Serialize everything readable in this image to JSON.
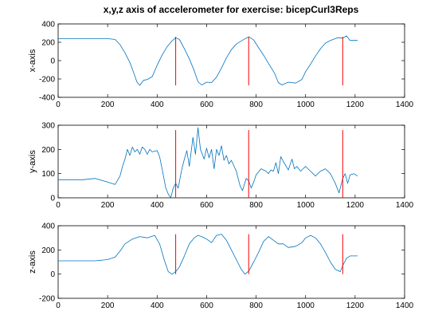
{
  "figure": {
    "title": "x,y,z axis of accelerometer for exercise: bicepCurl3Reps"
  },
  "chart_data": [
    {
      "type": "line",
      "name": "x",
      "ylabel": "x-axis",
      "xlim": [
        0,
        1400
      ],
      "ylim": [
        -400,
        400
      ],
      "xticks": [
        0,
        200,
        400,
        600,
        800,
        1000,
        1200,
        1400
      ],
      "yticks": [
        -400,
        -200,
        0,
        200,
        400
      ],
      "series_color": "#0072bd",
      "marker_color": "#ff0000",
      "markers": {
        "x": [
          475,
          770,
          1150
        ],
        "y_range": [
          -270,
          260
        ]
      },
      "points": [
        [
          0,
          240
        ],
        [
          100,
          240
        ],
        [
          200,
          240
        ],
        [
          230,
          230
        ],
        [
          250,
          175
        ],
        [
          270,
          85
        ],
        [
          290,
          -20
        ],
        [
          305,
          -130
        ],
        [
          318,
          -230
        ],
        [
          330,
          -270
        ],
        [
          345,
          -215
        ],
        [
          360,
          -205
        ],
        [
          380,
          -175
        ],
        [
          400,
          -50
        ],
        [
          420,
          60
        ],
        [
          440,
          150
        ],
        [
          460,
          215
        ],
        [
          475,
          250
        ],
        [
          490,
          230
        ],
        [
          510,
          130
        ],
        [
          530,
          20
        ],
        [
          550,
          -110
        ],
        [
          565,
          -230
        ],
        [
          580,
          -265
        ],
        [
          600,
          -235
        ],
        [
          620,
          -240
        ],
        [
          640,
          -180
        ],
        [
          660,
          -80
        ],
        [
          680,
          30
        ],
        [
          700,
          120
        ],
        [
          720,
          180
        ],
        [
          740,
          215
        ],
        [
          760,
          245
        ],
        [
          770,
          260
        ],
        [
          790,
          225
        ],
        [
          810,
          140
        ],
        [
          830,
          60
        ],
        [
          850,
          -30
        ],
        [
          875,
          -140
        ],
        [
          890,
          -240
        ],
        [
          905,
          -265
        ],
        [
          930,
          -235
        ],
        [
          960,
          -245
        ],
        [
          985,
          -205
        ],
        [
          1000,
          -120
        ],
        [
          1020,
          -40
        ],
        [
          1040,
          50
        ],
        [
          1060,
          130
        ],
        [
          1080,
          190
        ],
        [
          1100,
          220
        ],
        [
          1130,
          250
        ],
        [
          1150,
          245
        ],
        [
          1165,
          270
        ],
        [
          1180,
          220
        ],
        [
          1210,
          220
        ]
      ]
    },
    {
      "type": "line",
      "name": "y",
      "ylabel": "y-axis",
      "xlim": [
        0,
        1400
      ],
      "ylim": [
        0,
        300
      ],
      "xticks": [
        0,
        200,
        400,
        600,
        800,
        1000,
        1200,
        1400
      ],
      "yticks": [
        0,
        100,
        200,
        300
      ],
      "series_color": "#0072bd",
      "marker_color": "#ff0000",
      "markers": {
        "x": [
          475,
          770,
          1150
        ],
        "y_range": [
          0,
          280
        ]
      },
      "points": [
        [
          0,
          75
        ],
        [
          100,
          75
        ],
        [
          150,
          80
        ],
        [
          200,
          65
        ],
        [
          230,
          55
        ],
        [
          250,
          90
        ],
        [
          260,
          130
        ],
        [
          270,
          160
        ],
        [
          280,
          200
        ],
        [
          290,
          175
        ],
        [
          300,
          210
        ],
        [
          310,
          190
        ],
        [
          320,
          200
        ],
        [
          330,
          180
        ],
        [
          340,
          210
        ],
        [
          350,
          200
        ],
        [
          360,
          180
        ],
        [
          370,
          200
        ],
        [
          380,
          190
        ],
        [
          400,
          195
        ],
        [
          410,
          170
        ],
        [
          420,
          120
        ],
        [
          435,
          40
        ],
        [
          445,
          15
        ],
        [
          455,
          0
        ],
        [
          465,
          40
        ],
        [
          475,
          60
        ],
        [
          485,
          40
        ],
        [
          500,
          120
        ],
        [
          510,
          160
        ],
        [
          520,
          195
        ],
        [
          530,
          130
        ],
        [
          545,
          250
        ],
        [
          555,
          180
        ],
        [
          565,
          290
        ],
        [
          575,
          200
        ],
        [
          590,
          160
        ],
        [
          600,
          205
        ],
        [
          610,
          165
        ],
        [
          620,
          200
        ],
        [
          630,
          120
        ],
        [
          640,
          200
        ],
        [
          650,
          175
        ],
        [
          660,
          215
        ],
        [
          670,
          155
        ],
        [
          680,
          175
        ],
        [
          690,
          140
        ],
        [
          700,
          155
        ],
        [
          720,
          110
        ],
        [
          735,
          50
        ],
        [
          745,
          30
        ],
        [
          760,
          80
        ],
        [
          770,
          70
        ],
        [
          780,
          40
        ],
        [
          790,
          65
        ],
        [
          800,
          95
        ],
        [
          820,
          120
        ],
        [
          840,
          110
        ],
        [
          850,
          100
        ],
        [
          860,
          115
        ],
        [
          870,
          110
        ],
        [
          880,
          145
        ],
        [
          890,
          100
        ],
        [
          900,
          170
        ],
        [
          910,
          150
        ],
        [
          930,
          115
        ],
        [
          945,
          160
        ],
        [
          955,
          120
        ],
        [
          965,
          130
        ],
        [
          980,
          110
        ],
        [
          1000,
          130
        ],
        [
          1020,
          110
        ],
        [
          1040,
          90
        ],
        [
          1060,
          110
        ],
        [
          1080,
          120
        ],
        [
          1100,
          100
        ],
        [
          1120,
          60
        ],
        [
          1135,
          20
        ],
        [
          1150,
          80
        ],
        [
          1160,
          100
        ],
        [
          1170,
          60
        ],
        [
          1180,
          95
        ],
        [
          1195,
          100
        ],
        [
          1210,
          90
        ]
      ]
    },
    {
      "type": "line",
      "name": "z",
      "ylabel": "z-axis",
      "xlim": [
        0,
        1400
      ],
      "ylim": [
        -200,
        400
      ],
      "xticks": [
        0,
        200,
        400,
        600,
        800,
        1000,
        1200,
        1400
      ],
      "yticks": [
        -200,
        0,
        200,
        400
      ],
      "series_color": "#0072bd",
      "marker_color": "#ff0000",
      "markers": {
        "x": [
          475,
          770,
          1150
        ],
        "y_range": [
          0,
          330
        ]
      },
      "points": [
        [
          0,
          110
        ],
        [
          150,
          110
        ],
        [
          200,
          120
        ],
        [
          230,
          140
        ],
        [
          250,
          190
        ],
        [
          270,
          250
        ],
        [
          300,
          290
        ],
        [
          330,
          310
        ],
        [
          360,
          300
        ],
        [
          390,
          320
        ],
        [
          410,
          250
        ],
        [
          430,
          110
        ],
        [
          445,
          20
        ],
        [
          460,
          0
        ],
        [
          475,
          20
        ],
        [
          490,
          60
        ],
        [
          510,
          150
        ],
        [
          530,
          250
        ],
        [
          550,
          300
        ],
        [
          565,
          320
        ],
        [
          580,
          310
        ],
        [
          600,
          290
        ],
        [
          620,
          260
        ],
        [
          640,
          320
        ],
        [
          660,
          330
        ],
        [
          680,
          280
        ],
        [
          700,
          200
        ],
        [
          720,
          120
        ],
        [
          740,
          40
        ],
        [
          755,
          0
        ],
        [
          770,
          25
        ],
        [
          790,
          100
        ],
        [
          810,
          180
        ],
        [
          830,
          270
        ],
        [
          850,
          310
        ],
        [
          870,
          280
        ],
        [
          890,
          250
        ],
        [
          910,
          250
        ],
        [
          930,
          220
        ],
        [
          960,
          230
        ],
        [
          985,
          260
        ],
        [
          1000,
          300
        ],
        [
          1020,
          320
        ],
        [
          1040,
          300
        ],
        [
          1060,
          250
        ],
        [
          1080,
          180
        ],
        [
          1100,
          100
        ],
        [
          1120,
          40
        ],
        [
          1140,
          20
        ],
        [
          1150,
          70
        ],
        [
          1165,
          130
        ],
        [
          1180,
          150
        ],
        [
          1195,
          150
        ],
        [
          1210,
          150
        ]
      ]
    }
  ]
}
